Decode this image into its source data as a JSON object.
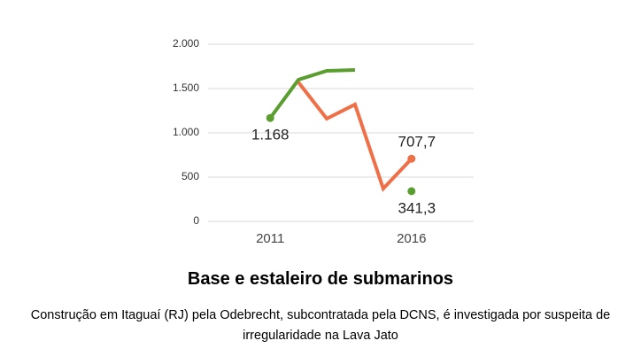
{
  "chart_data": {
    "type": "line",
    "title": "Base e estaleiro de submarinos",
    "subtitle": "Construção em Itaguaí (RJ) pela Odebrecht, subcontratada pela DCNS, é investigada por suspeita de irregularidade na Lava Jato",
    "x": [
      2011,
      2012,
      2013,
      2014,
      2015,
      2016
    ],
    "series": [
      {
        "color": "#5a9e2f",
        "values": [
          1168,
          1600,
          1700,
          1710,
          null,
          341.3
        ],
        "value_labels": [
          "1.168",
          null,
          null,
          null,
          null,
          "341,3"
        ]
      },
      {
        "color": "#ef6f47",
        "values": [
          null,
          1570,
          1160,
          1320,
          370,
          707.7
        ],
        "value_labels": [
          null,
          null,
          null,
          null,
          null,
          "707,7"
        ]
      }
    ],
    "xlim": [
      2008.8,
      2018.2
    ],
    "xticks": [
      2011,
      2016
    ],
    "ylim": [
      0,
      2000
    ],
    "yticks": [
      {
        "value": 2000,
        "label": "2.000"
      },
      {
        "value": 1500,
        "label": "1.500"
      },
      {
        "value": 1000,
        "label": "1.000"
      },
      500,
      0
    ],
    "grid": true
  }
}
